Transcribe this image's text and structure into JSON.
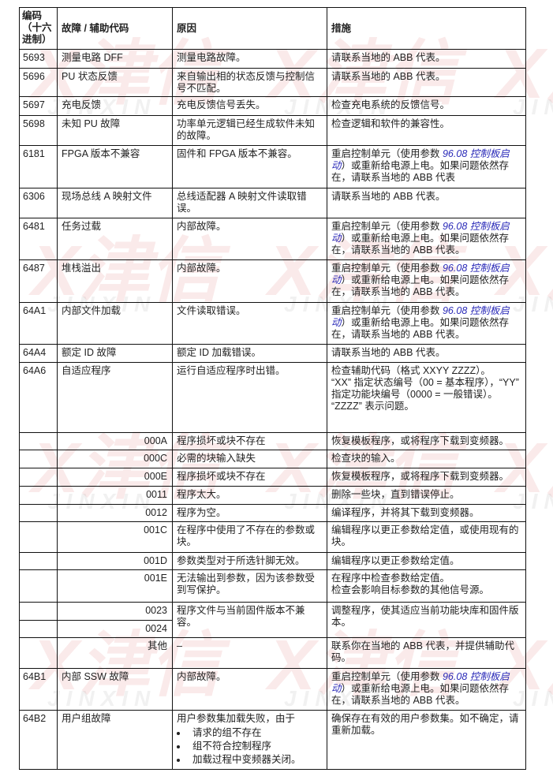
{
  "watermark": {
    "brand": "津信",
    "latin": "JINXIN",
    "mark": "X"
  },
  "header": {
    "code": "编码（十六进制）",
    "name": "故障 / 辅助代码",
    "cause": "原因",
    "action": "措施"
  },
  "rows": [
    {
      "code": "5693",
      "name": "测量电路 DFF",
      "cause": "测量电路故障。",
      "action": [
        "请联系当地的 ABB 代表。"
      ]
    },
    {
      "code": "5696",
      "name": "PU 状态反馈",
      "cause": "来自输出相的状态反馈与控制信号不匹配。",
      "action": [
        "请联系当地的 ABB 代表。"
      ]
    },
    {
      "code": "5697",
      "name": "充电反馈",
      "cause": "充电反馈信号丢失。",
      "action": [
        "检查充电系统的反馈信号。"
      ]
    },
    {
      "code": "5698",
      "name": "未知 PU 故障",
      "cause": "功率单元逻辑已经生成软件未知的故障。",
      "action": [
        "检查逻辑和软件的兼容性。"
      ]
    },
    {
      "code": "6181",
      "name": "FPGA 版本不兼容",
      "cause": "固件和 FPGA 版本不兼容。",
      "action": [
        "重启控制单元（使用参数 ",
        "96.08 控制板启动",
        "）或重新给电源上电。如果问题依然存在，请联系当地的 ABB 代表"
      ]
    },
    {
      "code": "6306",
      "name": "现场总线 A 映射文件",
      "cause": "总线适配器 A 映射文件读取错误。",
      "action": [
        "请联系当地的 ABB 代表。"
      ]
    },
    {
      "code": "6481",
      "name": "任务过载",
      "cause": "内部故障。",
      "action": [
        "重启控制单元（使用参数 ",
        "96.08 控制板启动",
        "）或重新给电源上电。如果问题依然存在，请联系当地的 ABB 代表。"
      ]
    },
    {
      "code": "6487",
      "name": "堆栈溢出",
      "cause": "内部故障。",
      "action": [
        "重启控制单元（使用参数 ",
        "96.08 控制板启动",
        "）或重新给电源上电。如果问题依然存在，请联系当地的 ABB 代表。"
      ]
    },
    {
      "code": "64A1",
      "name": "内部文件加载",
      "cause": "文件读取错误。",
      "action": [
        "重启控制单元（使用参数 ",
        "96.08 控制板启动",
        "）或重新给电源上电。如果问题依然存在，请联系当地的 ABB 代表。"
      ]
    },
    {
      "code": "64A4",
      "name": "额定 ID 故障",
      "cause": "额定 ID 加载错误。",
      "action": [
        "请联系当地的 ABB 代表。"
      ]
    },
    {
      "code": "64A6",
      "name": "自适应程序",
      "cause": "运行自适应程序时出错。",
      "action_lines": [
        "检查辅助代码（格式 XXYY ZZZZ）。",
        "“XX” 指定状态编号（00 = 基本程序），“YY” 指定功能块编号（0000 = 一般错误）。",
        "“ZZZZ” 表示问题。"
      ]
    },
    {
      "aux": "000A",
      "cause": "程序损坏或块不存在",
      "action": [
        "恢复模板程序，或将程序下载到变频器。"
      ]
    },
    {
      "aux": "000C",
      "cause": "必需的块输入缺失",
      "action": [
        "检查块的输入。"
      ]
    },
    {
      "aux": "000E",
      "cause": "程序损坏或块不存在",
      "action": [
        "恢复模板程序，或将程序下载到变频器。"
      ]
    },
    {
      "aux": "0011",
      "cause": "程序太大。",
      "action": [
        "删除一些块，直到错误停止。"
      ]
    },
    {
      "aux": "0012",
      "cause": "程序为空。",
      "action": [
        "编译程序，并将其下载到变频器。"
      ]
    },
    {
      "aux": "001C",
      "cause": "在程序中使用了不存在的参数或块。",
      "action": [
        "编辑程序以更正参数给定值，或使用现有的块。"
      ]
    },
    {
      "aux": "001D",
      "cause": "参数类型对于所选针脚无效。",
      "action": [
        "编辑程序以更正参数给定值。"
      ]
    },
    {
      "aux": "001E",
      "cause": "无法输出到参数，因为该参数受到写保护。",
      "action_lines": [
        "在程序中检查参数给定值。",
        "检查会影响目标参数的其他信号源。"
      ]
    },
    {
      "aux": "0023",
      "cause": "程序文件与当前固件版本不兼容。",
      "action": [
        "调整程序，使其适应当前功能块库和固件版本。"
      ]
    },
    {
      "aux": "0024"
    },
    {
      "aux": "其他",
      "cause": "–",
      "action": [
        "联系你在当地的 ABB 代表，并提供辅助代码。"
      ]
    },
    {
      "code": "64B1",
      "name": "内部 SSW 故障",
      "cause": "内部故障。",
      "action": [
        "重启控制单元（使用参数 ",
        "96.08 控制板启动",
        "）或重新给电源上电。如果问题依然存在，请联系当地的 ABB 代表。"
      ]
    },
    {
      "code": "64B2",
      "name": "用户组故障",
      "cause": "用户参数集加载失败，由于",
      "cause_bullets": [
        "请求的组不存在",
        "组不符合控制程序",
        "加载过程中变频器关闭。"
      ],
      "action": [
        "确保存在有效的用户参数集。如不确定，请重新加载。"
      ]
    }
  ]
}
